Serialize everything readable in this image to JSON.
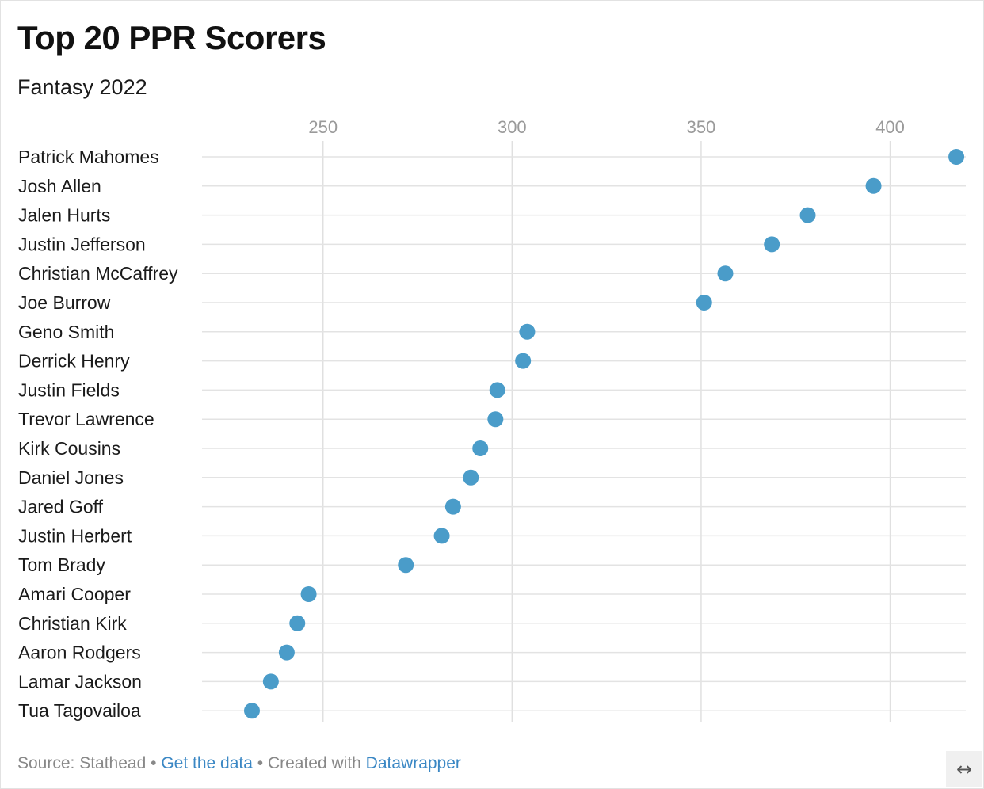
{
  "header": {
    "title": "Top 20 PPR Scorers",
    "subtitle": "Fantasy 2022"
  },
  "chart_data": {
    "type": "scatter",
    "title": "Top 20 PPR Scorers",
    "subtitle": "Fantasy 2022",
    "xlabel": "",
    "ylabel": "",
    "xlim": [
      218,
      420
    ],
    "x_ticks": [
      250,
      300,
      350,
      400
    ],
    "grid": true,
    "dot_color": "#4a9cc9",
    "categories": [
      "Patrick Mahomes",
      "Josh Allen",
      "Jalen Hurts",
      "Justin Jefferson",
      "Christian McCaffrey",
      "Joe Burrow",
      "Geno Smith",
      "Derrick Henry",
      "Justin Fields",
      "Trevor Lawrence",
      "Kirk Cousins",
      "Daniel Jones",
      "Jared Goff",
      "Justin Herbert",
      "Tom Brady",
      "Amari Cooper",
      "Christian Kirk",
      "Aaron Rodgers",
      "Lamar Jackson",
      "Tua Tagovailoa"
    ],
    "values": [
      417.5,
      395.6,
      378.2,
      368.7,
      356.4,
      350.8,
      304.0,
      302.9,
      296.1,
      295.6,
      291.6,
      289.1,
      284.4,
      281.4,
      271.9,
      246.2,
      243.2,
      240.4,
      236.2,
      231.2
    ]
  },
  "footer": {
    "source_text": "Source: Stathead",
    "separator": " • ",
    "data_link": "Get the data",
    "created_text": "Created with",
    "tool_link": "Datawrapper"
  },
  "controls": {
    "expand_icon": "↔"
  }
}
